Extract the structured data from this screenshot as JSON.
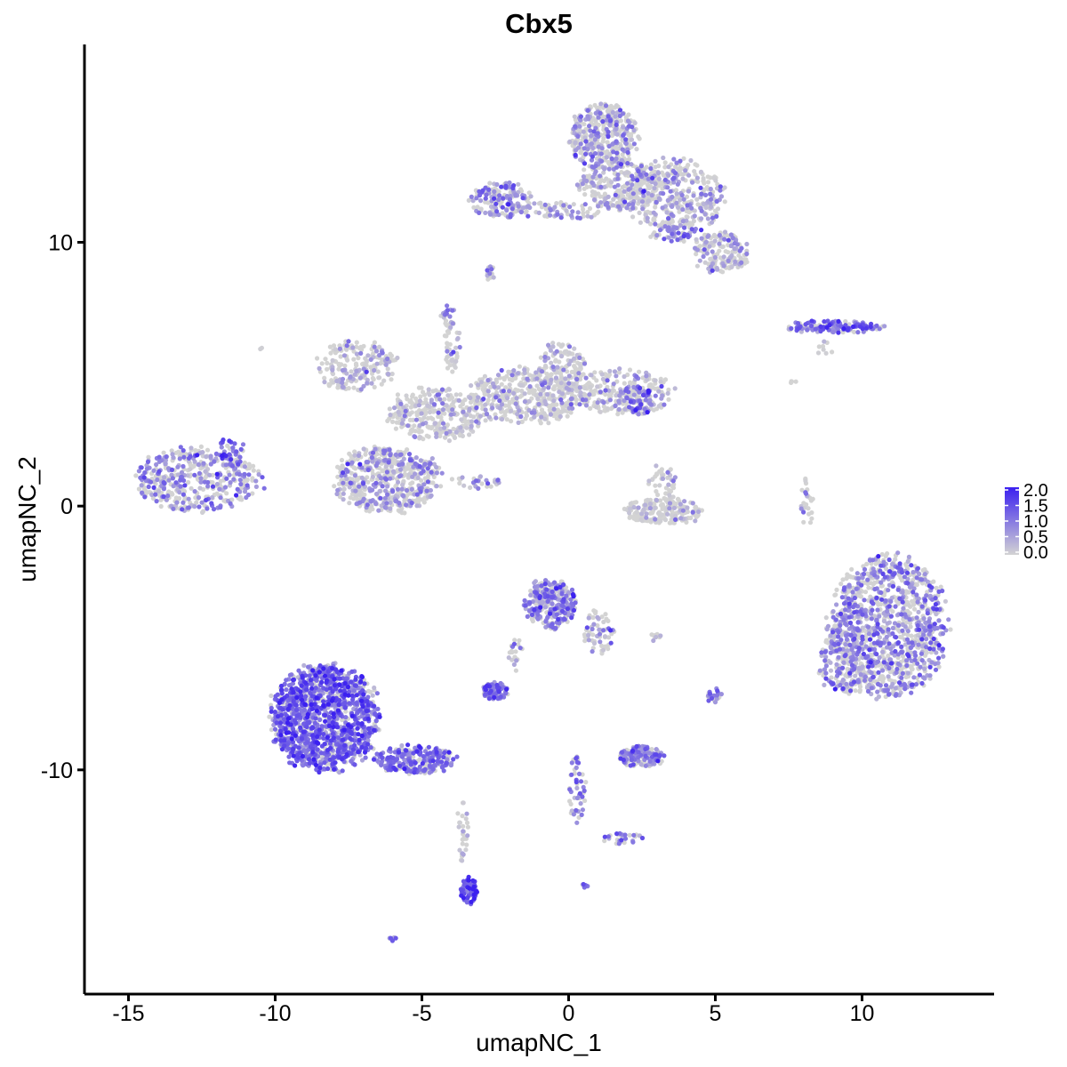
{
  "chart_data": {
    "type": "scatter",
    "title": "Cbx5",
    "xlabel": "umapNC_1",
    "ylabel": "umapNC_2",
    "xlim": [
      -16.5,
      14.5
    ],
    "ylim": [
      -18.5,
      17.5
    ],
    "x_ticks": [
      -15,
      -10,
      -5,
      0,
      5,
      10
    ],
    "x_tick_labels": [
      "-15",
      "-10",
      "-5",
      "0",
      "5",
      "10"
    ],
    "y_ticks": [
      -10,
      0,
      10
    ],
    "y_tick_labels": [
      "-10",
      "0",
      "10"
    ],
    "grid": false,
    "color_scale": {
      "low_color": "#d3d3d3",
      "high_color": "#3b20f0",
      "min": 0.0,
      "max": 2.0,
      "ticks": [
        "2.0",
        "1.5",
        "1.0",
        "0.5",
        "0.0"
      ],
      "legend_position": "right"
    },
    "clusters": [
      {
        "cx": -12.6,
        "cy": 1.0,
        "rx": 2.2,
        "ry": 1.25,
        "n": 420,
        "expr": 0.7
      },
      {
        "cx": -11.5,
        "cy": 2.1,
        "rx": 0.5,
        "ry": 0.6,
        "n": 40,
        "expr": 1.1
      },
      {
        "cx": -7.2,
        "cy": 5.3,
        "rx": 1.4,
        "ry": 1.0,
        "n": 200,
        "expr": 0.35
      },
      {
        "cx": -6.2,
        "cy": 1.0,
        "rx": 1.9,
        "ry": 1.3,
        "n": 520,
        "expr": 0.55
      },
      {
        "cx": -4.5,
        "cy": 3.5,
        "rx": 1.8,
        "ry": 1.0,
        "n": 300,
        "expr": 0.3
      },
      {
        "cx": -1.5,
        "cy": 4.2,
        "rx": 2.0,
        "ry": 1.1,
        "n": 400,
        "expr": 0.3
      },
      {
        "cx": -0.3,
        "cy": 5.3,
        "rx": 0.9,
        "ry": 0.9,
        "n": 120,
        "expr": 0.35
      },
      {
        "cx": 1.8,
        "cy": 4.3,
        "rx": 1.8,
        "ry": 0.9,
        "n": 250,
        "expr": 0.45
      },
      {
        "cx": 2.4,
        "cy": 4.0,
        "rx": 0.5,
        "ry": 0.6,
        "n": 60,
        "expr": 1.1
      },
      {
        "cx": -4.0,
        "cy": 6.2,
        "rx": 0.3,
        "ry": 1.2,
        "n": 40,
        "expr": 0.4
      },
      {
        "cx": -3.2,
        "cy": 0.9,
        "rx": 1.0,
        "ry": 0.25,
        "n": 30,
        "expr": 0.8
      },
      {
        "cx": 1.2,
        "cy": 14.0,
        "rx": 1.2,
        "ry": 1.3,
        "n": 380,
        "expr": 0.55
      },
      {
        "cx": 1.8,
        "cy": 12.2,
        "rx": 1.5,
        "ry": 1.0,
        "n": 250,
        "expr": 0.4
      },
      {
        "cx": 3.6,
        "cy": 11.8,
        "rx": 1.8,
        "ry": 1.4,
        "n": 380,
        "expr": 0.55
      },
      {
        "cx": -2.3,
        "cy": 11.6,
        "rx": 1.1,
        "ry": 0.7,
        "n": 160,
        "expr": 0.75
      },
      {
        "cx": -0.3,
        "cy": 11.2,
        "rx": 1.5,
        "ry": 0.35,
        "n": 70,
        "expr": 0.6
      },
      {
        "cx": 5.2,
        "cy": 9.6,
        "rx": 1.0,
        "ry": 0.8,
        "n": 160,
        "expr": 0.55
      },
      {
        "cx": 3.7,
        "cy": 10.3,
        "rx": 1.0,
        "ry": 0.3,
        "n": 40,
        "expr": 1.0
      },
      {
        "cx": -2.7,
        "cy": 8.8,
        "rx": 0.2,
        "ry": 0.4,
        "n": 15,
        "expr": 0.5
      },
      {
        "cx": 9.1,
        "cy": 6.8,
        "rx": 1.8,
        "ry": 0.25,
        "n": 130,
        "expr": 1.15
      },
      {
        "cx": 8.7,
        "cy": 6.0,
        "rx": 0.4,
        "ry": 0.3,
        "n": 8,
        "expr": 0.3
      },
      {
        "cx": 3.2,
        "cy": -0.2,
        "rx": 1.4,
        "ry": 0.55,
        "n": 200,
        "expr": 0.15
      },
      {
        "cx": 3.2,
        "cy": 1.0,
        "rx": 0.5,
        "ry": 0.7,
        "n": 40,
        "expr": 0.3
      },
      {
        "cx": 8.1,
        "cy": 0.2,
        "rx": 0.25,
        "ry": 1.0,
        "n": 25,
        "expr": 0.5
      },
      {
        "cx": 10.9,
        "cy": -4.6,
        "rx": 2.1,
        "ry": 2.8,
        "n": 1100,
        "expr": 0.75
      },
      {
        "cx": 9.3,
        "cy": -5.9,
        "rx": 0.8,
        "ry": 1.3,
        "n": 150,
        "expr": 0.65
      },
      {
        "cx": -8.3,
        "cy": -8.0,
        "rx": 1.9,
        "ry": 2.1,
        "n": 1300,
        "expr": 1.2
      },
      {
        "cx": -5.2,
        "cy": -9.6,
        "rx": 1.5,
        "ry": 0.55,
        "n": 250,
        "expr": 1.0
      },
      {
        "cx": -3.4,
        "cy": -14.6,
        "rx": 0.3,
        "ry": 0.6,
        "n": 70,
        "expr": 1.4
      },
      {
        "cx": -3.6,
        "cy": -12.2,
        "rx": 0.2,
        "ry": 1.3,
        "n": 30,
        "expr": 0.3
      },
      {
        "cx": -0.6,
        "cy": -3.7,
        "rx": 0.9,
        "ry": 1.0,
        "n": 300,
        "expr": 0.9
      },
      {
        "cx": 1.0,
        "cy": -4.8,
        "rx": 0.6,
        "ry": 0.9,
        "n": 60,
        "expr": 0.55
      },
      {
        "cx": -2.5,
        "cy": -7.0,
        "rx": 0.45,
        "ry": 0.35,
        "n": 90,
        "expr": 1.05
      },
      {
        "cx": -1.8,
        "cy": -5.7,
        "rx": 0.25,
        "ry": 0.7,
        "n": 20,
        "expr": 0.6
      },
      {
        "cx": 2.5,
        "cy": -9.5,
        "rx": 0.8,
        "ry": 0.4,
        "n": 150,
        "expr": 0.95
      },
      {
        "cx": 0.3,
        "cy": -10.7,
        "rx": 0.3,
        "ry": 1.3,
        "n": 50,
        "expr": 1.0
      },
      {
        "cx": 1.8,
        "cy": -12.6,
        "rx": 0.7,
        "ry": 0.25,
        "n": 30,
        "expr": 0.9
      },
      {
        "cx": 5.0,
        "cy": -7.2,
        "rx": 0.3,
        "ry": 0.35,
        "n": 20,
        "expr": 1.0
      },
      {
        "cx": 3.0,
        "cy": -5.0,
        "rx": 0.3,
        "ry": 0.15,
        "n": 8,
        "expr": 0.6
      },
      {
        "cx": 0.6,
        "cy": -14.4,
        "rx": 0.15,
        "ry": 0.1,
        "n": 5,
        "expr": 1.2
      },
      {
        "cx": -6.0,
        "cy": -16.4,
        "rx": 0.15,
        "ry": 0.15,
        "n": 5,
        "expr": 1.0
      },
      {
        "cx": -10.5,
        "cy": 6.0,
        "rx": 0.1,
        "ry": 0.1,
        "n": 2,
        "expr": 0.0
      },
      {
        "cx": 7.7,
        "cy": 4.7,
        "rx": 0.3,
        "ry": 0.2,
        "n": 4,
        "expr": 0.1
      },
      {
        "cx": -4.1,
        "cy": 7.2,
        "rx": 0.3,
        "ry": 0.4,
        "n": 20,
        "expr": 0.8
      }
    ]
  }
}
